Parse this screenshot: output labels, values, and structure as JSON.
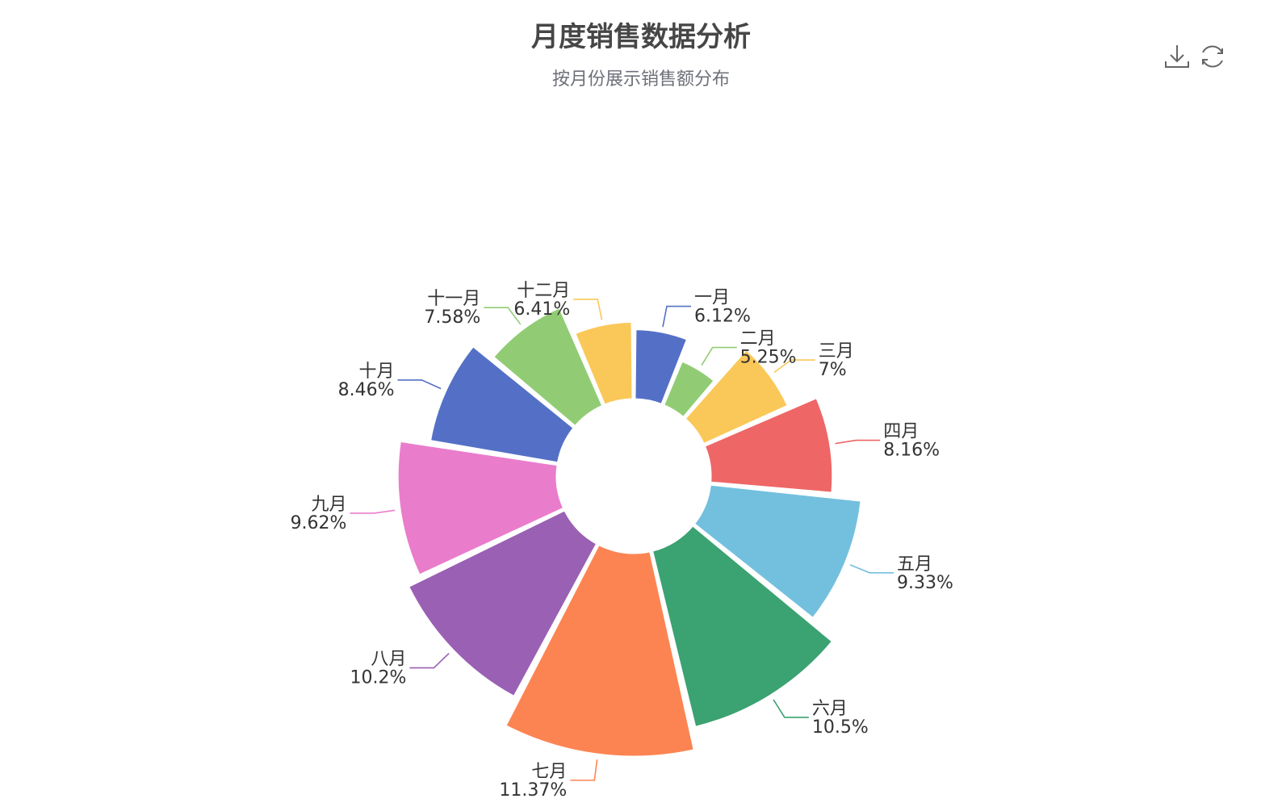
{
  "title": "月度销售数据分析",
  "subtitle": "按月份展示销售额分布",
  "toolbox": {
    "download_icon": "download-icon",
    "refresh_icon": "refresh-icon"
  },
  "chart_data": {
    "type": "pie",
    "variant": "nightingale-rose-donut",
    "title": "月度销售数据分析",
    "subtitle": "按月份展示销售额分布",
    "categories": [
      "一月",
      "二月",
      "三月",
      "四月",
      "五月",
      "六月",
      "七月",
      "八月",
      "九月",
      "十月",
      "十一月",
      "十二月"
    ],
    "percentages": [
      6.12,
      5.25,
      7,
      8.16,
      9.33,
      10.5,
      11.37,
      10.2,
      9.62,
      8.46,
      7.58,
      6.41
    ],
    "labels": [
      "6.12%",
      "5.25%",
      "7%",
      "8.16%",
      "9.33%",
      "10.5%",
      "11.37%",
      "10.2%",
      "9.62%",
      "8.46%",
      "7.58%",
      "6.41%"
    ],
    "colors": [
      "#5470c6",
      "#91cc75",
      "#fac858",
      "#ee6666",
      "#73c0de",
      "#3ba272",
      "#fc8452",
      "#9a60b4",
      "#ea7ccc",
      "#5470c6",
      "#91cc75",
      "#fac858"
    ]
  }
}
